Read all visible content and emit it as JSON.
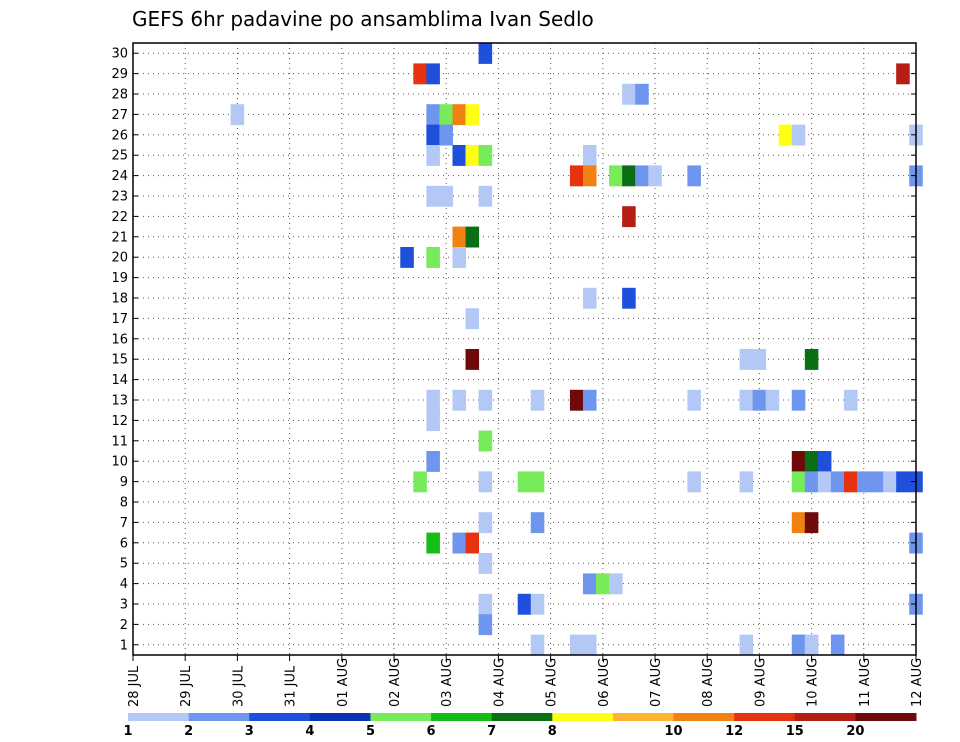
{
  "chart_data": {
    "type": "heatmap",
    "title": "GEFS 6hr padavine po ansamblima Ivan Sedlo",
    "xlabel": "",
    "ylabel": "",
    "x_tick_labels": [
      "28 JUL",
      "29 JUL",
      "30 JUL",
      "31 JUL",
      "01 AUG",
      "02 AUG",
      "03 AUG",
      "04 AUG",
      "05 AUG",
      "06 AUG",
      "07 AUG",
      "08 AUG",
      "09 AUG",
      "10 AUG",
      "11 AUG",
      "12 AUG"
    ],
    "x_range_days": [
      0,
      15
    ],
    "y_tick_labels": [
      "1",
      "2",
      "3",
      "4",
      "5",
      "6",
      "7",
      "8",
      "9",
      "10",
      "11",
      "12",
      "13",
      "14",
      "15",
      "16",
      "17",
      "18",
      "19",
      "20",
      "21",
      "22",
      "23",
      "24",
      "25",
      "26",
      "27",
      "28",
      "29",
      "30"
    ],
    "y_range": [
      0.5,
      30.5
    ],
    "grid": true,
    "colorbar": {
      "labels": [
        "1",
        "2",
        "3",
        "4",
        "5",
        "6",
        "7",
        "8",
        "10",
        "12",
        "15",
        "20"
      ],
      "colors": [
        "#b4c8f5",
        "#6e96ee",
        "#1e50dc",
        "#0a32b4",
        "#78eb5a",
        "#14be14",
        "#0a6e14",
        "#ffff14",
        "#ffb432",
        "#f08214",
        "#e6320f",
        "#b41e14",
        "#6e0a0a"
      ]
    },
    "cells": [
      {
        "t": 6.75,
        "m": 30,
        "c": 3
      },
      {
        "t": 5.5,
        "m": 29,
        "c": 11
      },
      {
        "t": 5.75,
        "m": 29,
        "c": 3
      },
      {
        "t": 14.75,
        "m": 29,
        "c": 12
      },
      {
        "t": 9.5,
        "m": 28,
        "c": 1
      },
      {
        "t": 9.75,
        "m": 28,
        "c": 2
      },
      {
        "t": 2.0,
        "m": 27,
        "c": 1
      },
      {
        "t": 5.75,
        "m": 27,
        "c": 2
      },
      {
        "t": 6.0,
        "m": 27,
        "c": 5
      },
      {
        "t": 6.25,
        "m": 27,
        "c": 10
      },
      {
        "t": 6.5,
        "m": 27,
        "c": 8
      },
      {
        "t": 5.75,
        "m": 26,
        "c": 3
      },
      {
        "t": 6.0,
        "m": 26,
        "c": 2
      },
      {
        "t": 12.5,
        "m": 26,
        "c": 8
      },
      {
        "t": 12.75,
        "m": 26,
        "c": 1
      },
      {
        "t": 15.0,
        "m": 26,
        "c": 1
      },
      {
        "t": 5.75,
        "m": 25,
        "c": 1
      },
      {
        "t": 6.25,
        "m": 25,
        "c": 3
      },
      {
        "t": 6.5,
        "m": 25,
        "c": 8
      },
      {
        "t": 6.75,
        "m": 25,
        "c": 5
      },
      {
        "t": 8.75,
        "m": 25,
        "c": 1
      },
      {
        "t": 8.5,
        "m": 24,
        "c": 11
      },
      {
        "t": 8.75,
        "m": 24,
        "c": 10
      },
      {
        "t": 9.25,
        "m": 24,
        "c": 5
      },
      {
        "t": 9.5,
        "m": 24,
        "c": 7
      },
      {
        "t": 9.75,
        "m": 24,
        "c": 2
      },
      {
        "t": 10.0,
        "m": 24,
        "c": 1
      },
      {
        "t": 10.75,
        "m": 24,
        "c": 2
      },
      {
        "t": 15.0,
        "m": 24,
        "c": 2
      },
      {
        "t": 5.75,
        "m": 23,
        "c": 1
      },
      {
        "t": 6.0,
        "m": 23,
        "c": 1
      },
      {
        "t": 6.75,
        "m": 23,
        "c": 1
      },
      {
        "t": 9.5,
        "m": 22,
        "c": 12
      },
      {
        "t": 6.25,
        "m": 21,
        "c": 10
      },
      {
        "t": 6.5,
        "m": 21,
        "c": 7
      },
      {
        "t": 5.25,
        "m": 20,
        "c": 3
      },
      {
        "t": 5.75,
        "m": 20,
        "c": 5
      },
      {
        "t": 6.25,
        "m": 20,
        "c": 1
      },
      {
        "t": 8.75,
        "m": 18,
        "c": 1
      },
      {
        "t": 9.5,
        "m": 18,
        "c": 3
      },
      {
        "t": 6.5,
        "m": 17,
        "c": 1
      },
      {
        "t": 6.5,
        "m": 15,
        "c": 13
      },
      {
        "t": 11.75,
        "m": 15,
        "c": 1
      },
      {
        "t": 12.0,
        "m": 15,
        "c": 1
      },
      {
        "t": 13.0,
        "m": 15,
        "c": 7
      },
      {
        "t": 5.75,
        "m": 13,
        "c": 1
      },
      {
        "t": 6.25,
        "m": 13,
        "c": 1
      },
      {
        "t": 6.75,
        "m": 13,
        "c": 1
      },
      {
        "t": 7.75,
        "m": 13,
        "c": 1
      },
      {
        "t": 8.5,
        "m": 13,
        "c": 13
      },
      {
        "t": 8.75,
        "m": 13,
        "c": 2
      },
      {
        "t": 10.75,
        "m": 13,
        "c": 1
      },
      {
        "t": 11.75,
        "m": 13,
        "c": 1
      },
      {
        "t": 12.0,
        "m": 13,
        "c": 2
      },
      {
        "t": 12.25,
        "m": 13,
        "c": 1
      },
      {
        "t": 12.75,
        "m": 13,
        "c": 2
      },
      {
        "t": 13.75,
        "m": 13,
        "c": 1
      },
      {
        "t": 5.75,
        "m": 12,
        "c": 1
      },
      {
        "t": 6.75,
        "m": 11,
        "c": 5
      },
      {
        "t": 5.75,
        "m": 10,
        "c": 2
      },
      {
        "t": 12.75,
        "m": 10,
        "c": 13
      },
      {
        "t": 13.0,
        "m": 10,
        "c": 7
      },
      {
        "t": 13.25,
        "m": 10,
        "c": 3
      },
      {
        "t": 5.5,
        "m": 9,
        "c": 5
      },
      {
        "t": 6.75,
        "m": 9,
        "c": 1
      },
      {
        "t": 7.5,
        "m": 9,
        "c": 5
      },
      {
        "t": 7.75,
        "m": 9,
        "c": 5
      },
      {
        "t": 10.75,
        "m": 9,
        "c": 1
      },
      {
        "t": 11.75,
        "m": 9,
        "c": 1
      },
      {
        "t": 12.75,
        "m": 9,
        "c": 5
      },
      {
        "t": 13.0,
        "m": 9,
        "c": 2
      },
      {
        "t": 13.25,
        "m": 9,
        "c": 1
      },
      {
        "t": 13.5,
        "m": 9,
        "c": 2
      },
      {
        "t": 13.75,
        "m": 9,
        "c": 11
      },
      {
        "t": 14.0,
        "m": 9,
        "c": 2
      },
      {
        "t": 14.25,
        "m": 9,
        "c": 2
      },
      {
        "t": 14.5,
        "m": 9,
        "c": 1
      },
      {
        "t": 14.75,
        "m": 9,
        "c": 3
      },
      {
        "t": 15.0,
        "m": 9,
        "c": 3
      },
      {
        "t": 6.75,
        "m": 7,
        "c": 1
      },
      {
        "t": 7.75,
        "m": 7,
        "c": 2
      },
      {
        "t": 12.75,
        "m": 7,
        "c": 10
      },
      {
        "t": 13.0,
        "m": 7,
        "c": 13
      },
      {
        "t": 5.75,
        "m": 6,
        "c": 6
      },
      {
        "t": 6.25,
        "m": 6,
        "c": 2
      },
      {
        "t": 6.5,
        "m": 6,
        "c": 11
      },
      {
        "t": 15.0,
        "m": 6,
        "c": 2
      },
      {
        "t": 6.75,
        "m": 5,
        "c": 1
      },
      {
        "t": 8.75,
        "m": 4,
        "c": 2
      },
      {
        "t": 9.0,
        "m": 4,
        "c": 5
      },
      {
        "t": 9.25,
        "m": 4,
        "c": 1
      },
      {
        "t": 6.75,
        "m": 3,
        "c": 1
      },
      {
        "t": 7.5,
        "m": 3,
        "c": 3
      },
      {
        "t": 7.75,
        "m": 3,
        "c": 1
      },
      {
        "t": 15.0,
        "m": 3,
        "c": 2
      },
      {
        "t": 6.75,
        "m": 2,
        "c": 2
      },
      {
        "t": 7.75,
        "m": 1,
        "c": 1
      },
      {
        "t": 8.5,
        "m": 1,
        "c": 1
      },
      {
        "t": 8.75,
        "m": 1,
        "c": 1
      },
      {
        "t": 11.75,
        "m": 1,
        "c": 1
      },
      {
        "t": 12.75,
        "m": 1,
        "c": 2
      },
      {
        "t": 13.0,
        "m": 1,
        "c": 1
      },
      {
        "t": 13.5,
        "m": 1,
        "c": 2
      }
    ]
  }
}
